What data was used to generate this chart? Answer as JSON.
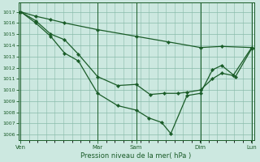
{
  "background_color": "#cce8e0",
  "grid_color": "#88bbaa",
  "line_color": "#1a5c28",
  "title": "Pression niveau de la mer( hPa )",
  "ylim": [
    1005.5,
    1017.8
  ],
  "yticks": [
    1006,
    1007,
    1008,
    1009,
    1010,
    1011,
    1012,
    1013,
    1014,
    1015,
    1016,
    1017
  ],
  "day_labels": [
    "Ven",
    "Mar",
    "Sam",
    "Dim",
    "Lun"
  ],
  "day_positions": [
    0.0,
    0.333,
    0.5,
    0.778,
    1.0
  ],
  "xmax": 1.0,
  "line1_x": [
    0.0,
    0.065,
    0.13,
    0.19,
    0.333,
    0.5,
    0.64,
    0.778,
    0.87,
    1.0
  ],
  "line1_y": [
    1017,
    1016.6,
    1016.3,
    1016.0,
    1015.4,
    1014.8,
    1014.3,
    1013.8,
    1013.9,
    1013.8
  ],
  "line2_x": [
    0.0,
    0.065,
    0.13,
    0.19,
    0.25,
    0.333,
    0.42,
    0.5,
    0.56,
    0.62,
    0.68,
    0.72,
    0.778,
    0.83,
    0.87,
    0.92,
    1.0
  ],
  "line2_y": [
    1017,
    1016.2,
    1015.0,
    1014.5,
    1013.2,
    1011.2,
    1010.4,
    1010.5,
    1009.6,
    1009.7,
    1009.7,
    1009.8,
    1010.0,
    1011.0,
    1011.5,
    1011.3,
    1013.8
  ],
  "line3_x": [
    0.0,
    0.065,
    0.13,
    0.19,
    0.25,
    0.333,
    0.42,
    0.5,
    0.555,
    0.61,
    0.65,
    0.72,
    0.778,
    0.83,
    0.87,
    0.93,
    1.0
  ],
  "line3_y": [
    1017,
    1016.0,
    1014.8,
    1013.3,
    1012.6,
    1009.7,
    1008.6,
    1008.2,
    1007.5,
    1007.1,
    1006.1,
    1009.5,
    1009.7,
    1011.8,
    1012.2,
    1011.2,
    1013.7
  ]
}
